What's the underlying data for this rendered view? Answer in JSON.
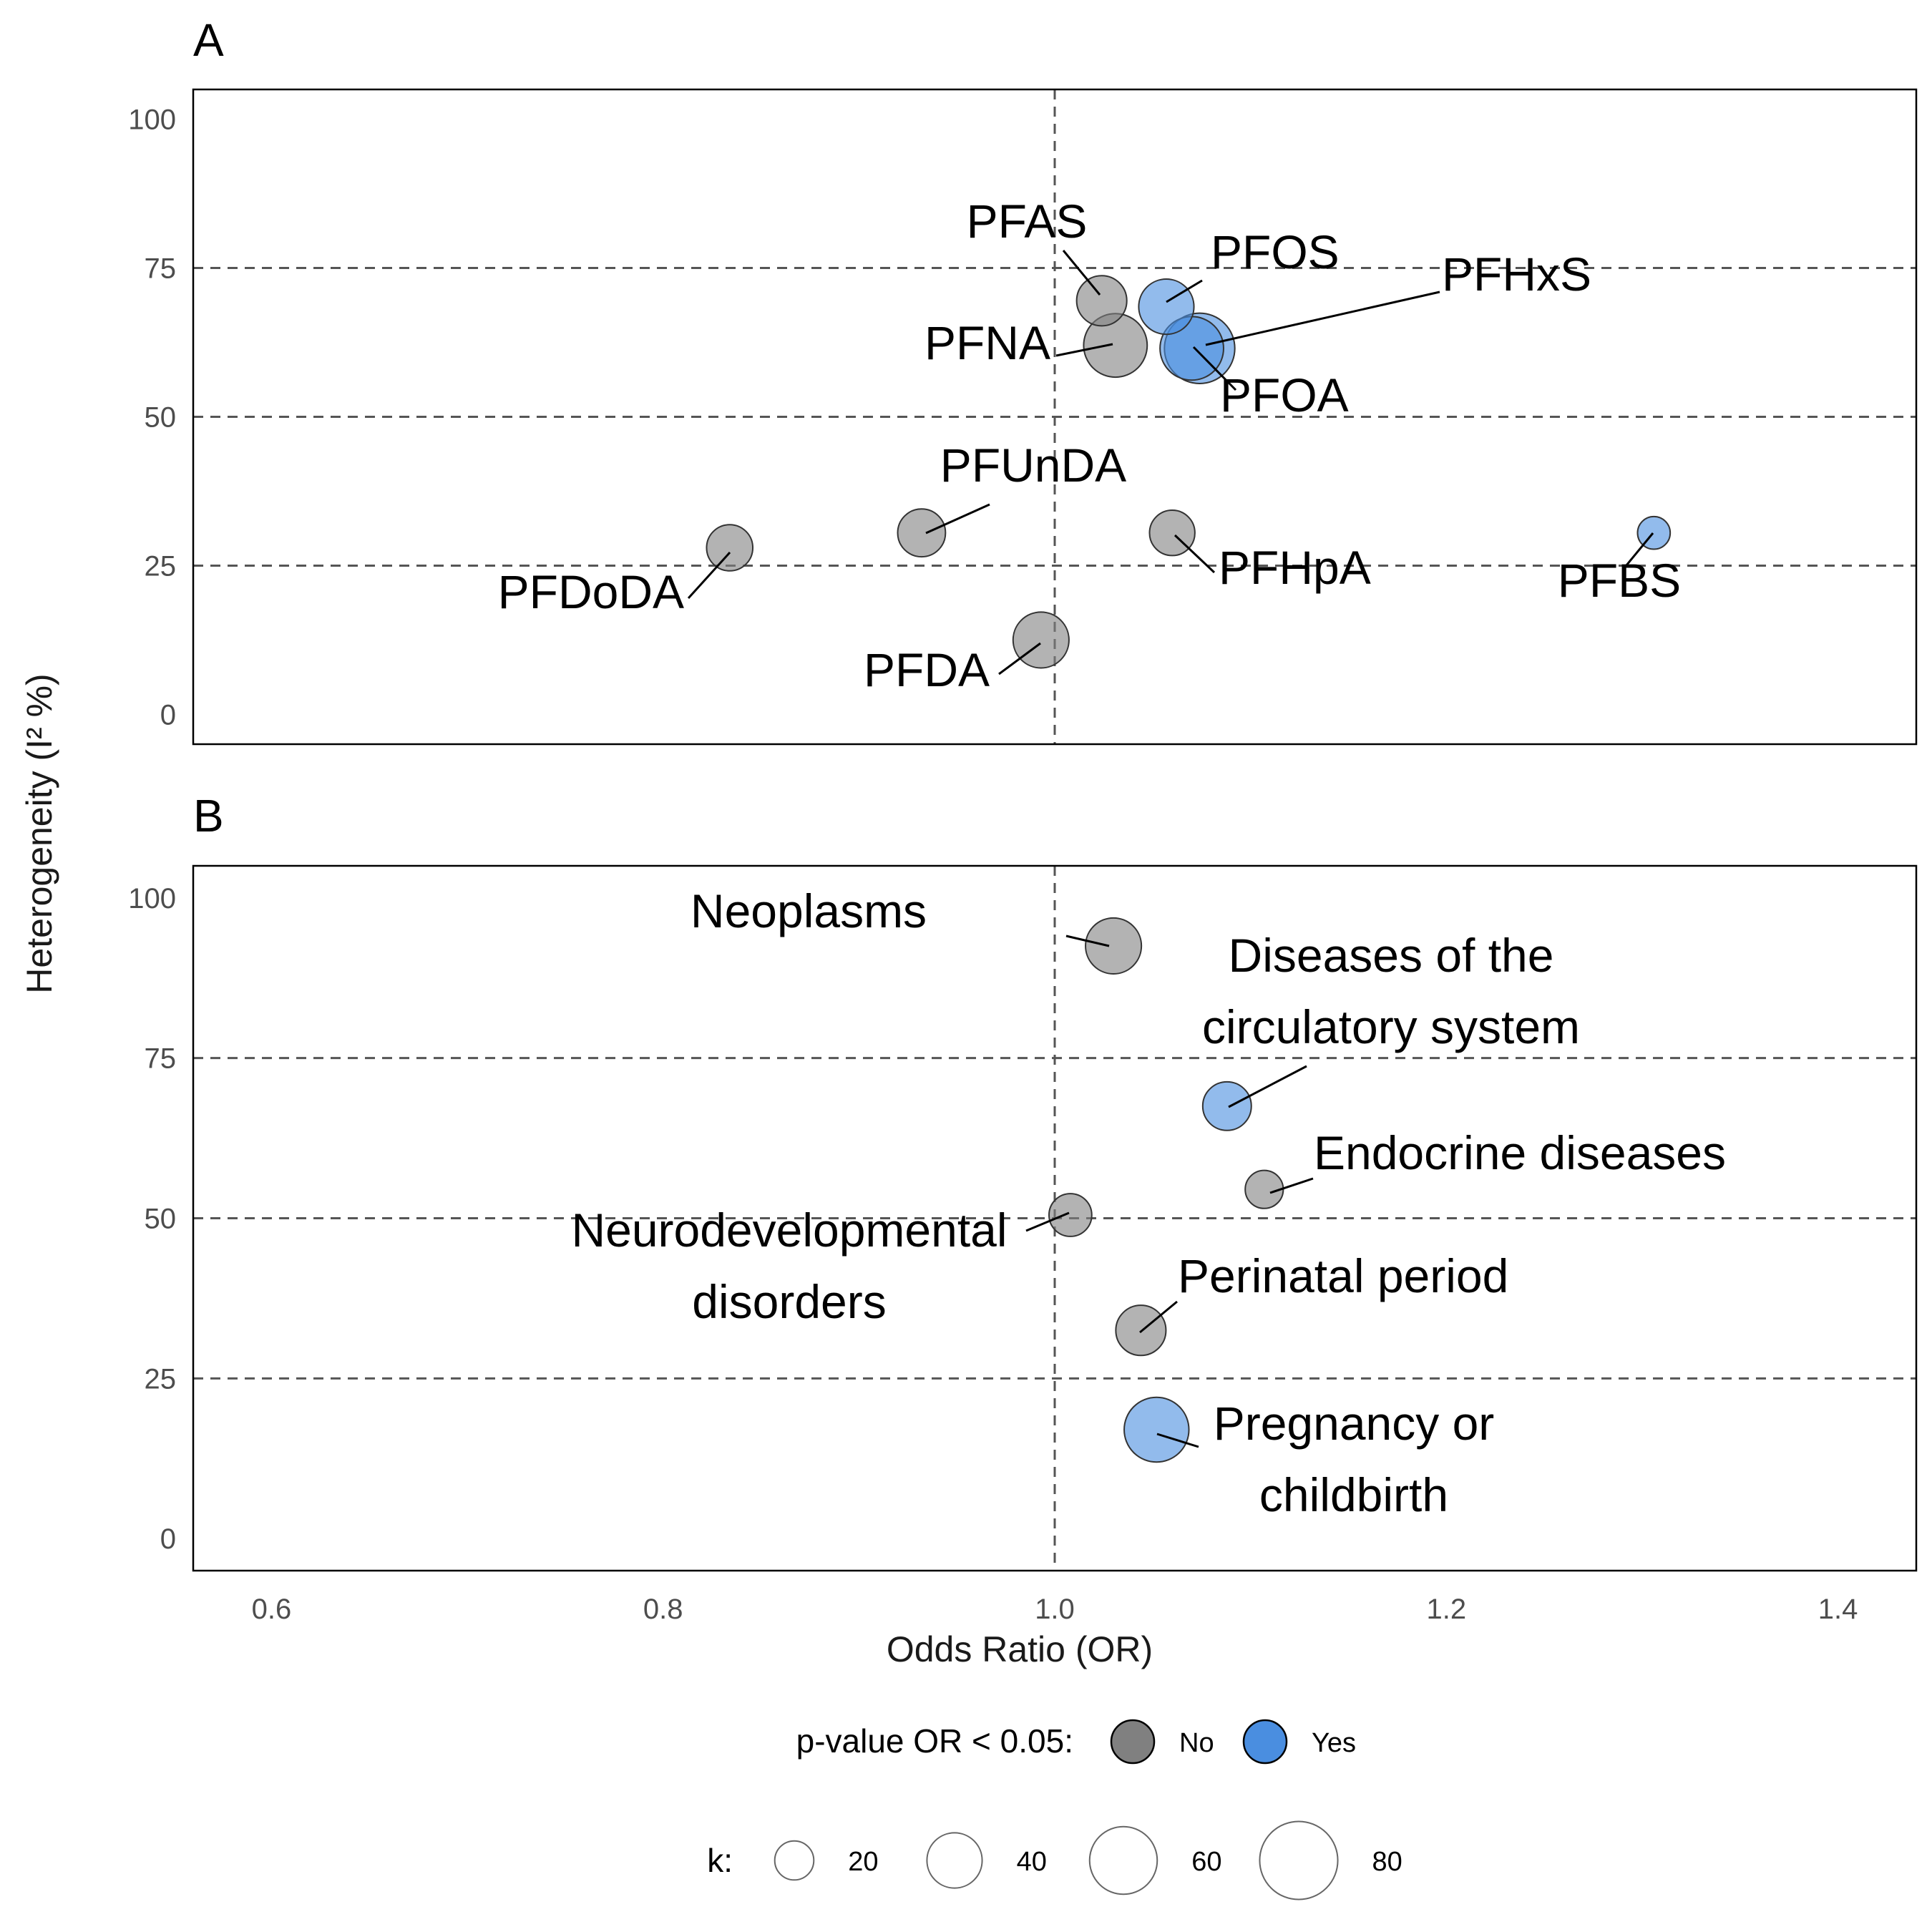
{
  "chart_data": [
    {
      "type": "scatter",
      "panel_tag": "A",
      "xlim": [
        0.56,
        1.44
      ],
      "ylim": [
        -5,
        105
      ],
      "x_ticks": [
        0.6,
        0.8,
        1.0,
        1.2,
        1.4
      ],
      "y_ticks": [
        0,
        25,
        50,
        75,
        100
      ],
      "reference_x": 1.0,
      "grid_y": [
        25,
        50,
        75
      ],
      "points": [
        {
          "label": "PFAS",
          "or": 1.024,
          "i2": 69.5,
          "k": 33,
          "significant": "No"
        },
        {
          "label": "PFOS",
          "or": 1.057,
          "i2": 68.5,
          "k": 40,
          "significant": "Yes"
        },
        {
          "label": "PFNA",
          "or": 1.031,
          "i2": 62,
          "k": 53,
          "significant": "No"
        },
        {
          "label": "PFHxS",
          "or": 1.074,
          "i2": 61.5,
          "k": 65,
          "significant": "Yes"
        },
        {
          "label": "PFOA",
          "or": 1.07,
          "i2": 61.5,
          "k": 53,
          "significant": "Yes"
        },
        {
          "label": "PFUnDA",
          "or": 0.932,
          "i2": 30.5,
          "k": 30,
          "significant": "No"
        },
        {
          "label": "PFDoDA",
          "or": 0.834,
          "i2": 28,
          "k": 28,
          "significant": "No"
        },
        {
          "label": "PFHpA",
          "or": 1.06,
          "i2": 30.5,
          "k": 27,
          "significant": "No"
        },
        {
          "label": "PFBS",
          "or": 1.306,
          "i2": 30.5,
          "k": 14,
          "significant": "Yes"
        },
        {
          "label": "PFDA",
          "or": 0.993,
          "i2": 12.5,
          "k": 41,
          "significant": "No"
        }
      ]
    },
    {
      "type": "scatter",
      "panel_tag": "B",
      "xlim": [
        0.56,
        1.44
      ],
      "ylim": [
        -5,
        105
      ],
      "x_ticks": [
        0.6,
        0.8,
        1.0,
        1.2,
        1.4
      ],
      "y_ticks": [
        0,
        25,
        50,
        75,
        100
      ],
      "reference_x": 1.0,
      "grid_y": [
        25,
        50,
        75
      ],
      "points": [
        {
          "label": "Neoplasms",
          "or": 1.03,
          "i2": 92.5,
          "k": 41,
          "significant": "No"
        },
        {
          "label": "Diseases of the circulatory system",
          "label_lines": [
            "Diseases of the",
            "circulatory system"
          ],
          "or": 1.088,
          "i2": 67.5,
          "k": 31,
          "significant": "Yes"
        },
        {
          "label": "Endocrine diseases",
          "or": 1.107,
          "i2": 54.5,
          "k": 19,
          "significant": "No"
        },
        {
          "label": "Neurodevelopmental disorders",
          "label_lines": [
            "Neurodevelopmental",
            "disorders"
          ],
          "or": 1.008,
          "i2": 50.5,
          "k": 24,
          "significant": "No"
        },
        {
          "label": "Perinatal period",
          "or": 1.044,
          "i2": 32.5,
          "k": 33,
          "significant": "No"
        },
        {
          "label": "Pregnancy or childbirth",
          "label_lines": [
            "Pregnancy or",
            "childbirth"
          ],
          "or": 1.052,
          "i2": 17,
          "k": 55,
          "significant": "Yes"
        }
      ]
    }
  ],
  "axes": {
    "xlabel": "Odds Ratio (OR)",
    "ylabel": "Heterogeneity (I² %)"
  },
  "legend": {
    "fill_title": "p-value OR < 0.05:",
    "fill_items": [
      {
        "label": "No",
        "color": "#808080"
      },
      {
        "label": "Yes",
        "color": "#4a8ee0"
      }
    ],
    "size_title": "k:",
    "size_items": [
      {
        "label": "20",
        "k": 20
      },
      {
        "label": "40",
        "k": 40
      },
      {
        "label": "60",
        "k": 60
      },
      {
        "label": "80",
        "k": 80
      }
    ]
  },
  "colors": {
    "No": "#808080",
    "Yes": "#4a8ee0"
  }
}
